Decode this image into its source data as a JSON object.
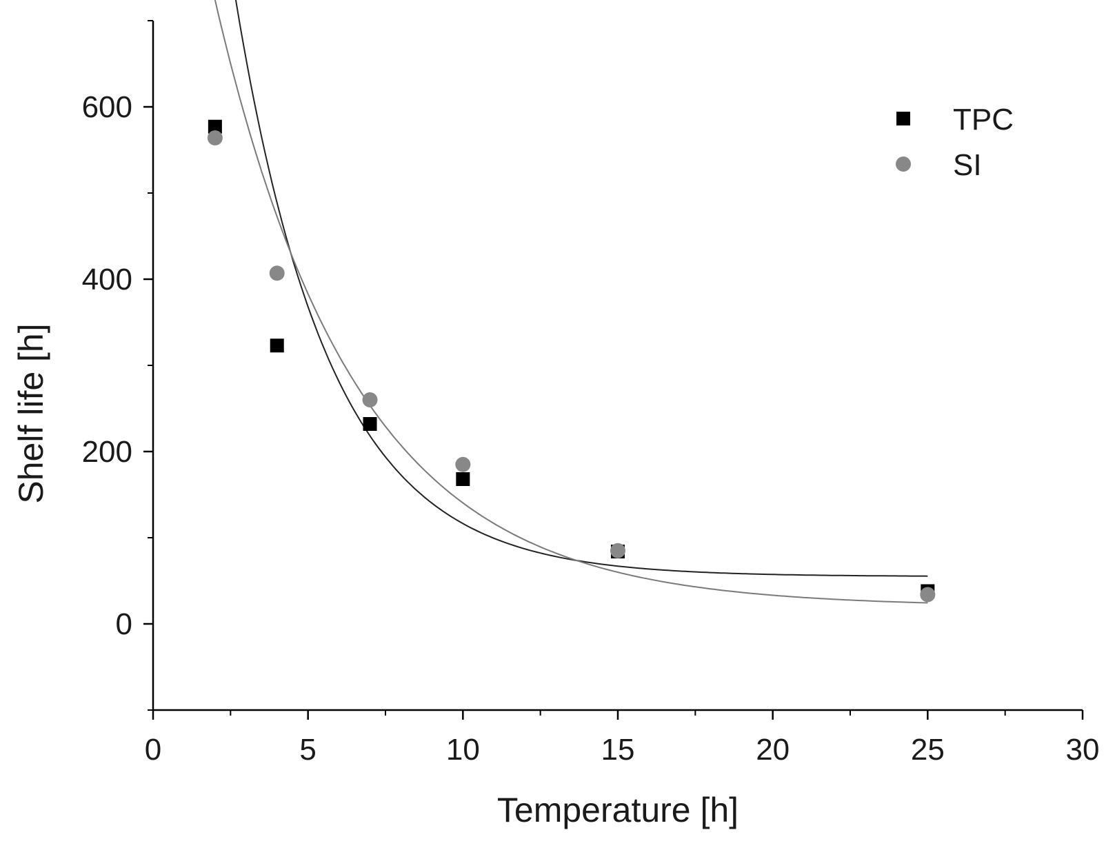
{
  "chart_data": {
    "type": "scatter",
    "xlabel": "Temperature [h]",
    "ylabel": "Shelf life [h]",
    "xlim": [
      0,
      30
    ],
    "ylim": [
      -100,
      700
    ],
    "x_ticks": [
      0,
      5,
      10,
      15,
      20,
      25,
      30
    ],
    "y_ticks": [
      0,
      200,
      400,
      600
    ],
    "grid": false,
    "legend_position": "top-right",
    "series": [
      {
        "name": "TPC",
        "marker": "square",
        "color": "#000000",
        "x": [
          2,
          4,
          7,
          10,
          15,
          25
        ],
        "y": [
          577,
          323,
          232,
          168,
          84,
          38
        ]
      },
      {
        "name": "SI",
        "marker": "circle",
        "color": "#888888",
        "x": [
          2,
          4,
          7,
          10,
          15,
          25
        ],
        "y": [
          564,
          407,
          260,
          185,
          85,
          34
        ]
      }
    ],
    "fit_curves": [
      {
        "series": "TPC",
        "color": "#222222",
        "model": "exponential decay",
        "y0": 55,
        "A": 832,
        "t": 3.07
      },
      {
        "series": "SI",
        "color": "#7a7a7a",
        "model": "exponential decay",
        "y0": 20,
        "A": 704,
        "t": 4.53
      }
    ]
  }
}
